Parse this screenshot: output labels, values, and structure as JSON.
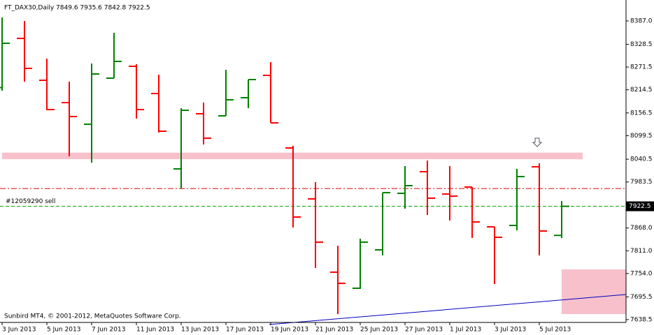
{
  "chart_data": {
    "type": "ohlc",
    "title": "FT_DAX30,Daily  7849.6 7935.6 7842.8 7922.5",
    "watermark": "Sunbird MT4, © 2001-2012, MetaQuotes Software Corp.",
    "categories": [
      "3 Jun 2013",
      null,
      "5 Jun 2013",
      null,
      "7 Jun 2013",
      null,
      "11 Jun 2013",
      null,
      "13 Jun 2013",
      null,
      "17 Jun 2013",
      null,
      "19 Jun 2013",
      null,
      "21 Jun 2013",
      null,
      "25 Jun 2013",
      null,
      "27 Jun 2013",
      null,
      "1 Jul 2013",
      null,
      "3 Jul 2013",
      null,
      "5 Jul 2013",
      null
    ],
    "open": [
      8220.0,
      8343.3,
      8238.3,
      8182.4,
      8128.1,
      8243.6,
      8273.3,
      8205.1,
      8016.2,
      8154.4,
      8149.1,
      8194.6,
      8250.6,
      8068.7,
      7941.0,
      7757.4,
      7717.1,
      7813.3,
      7955.0,
      8009.2,
      7953.2,
      7970.7,
      7871.0,
      7874.5,
      8021.5,
      7849.6
    ],
    "high": [
      8395.7,
      8387.0,
      8292.6,
      8234.8,
      8280.3,
      8357.3,
      8278.6,
      8252.3,
      8168.4,
      8182.4,
      8264.6,
      8240.1,
      8283.8,
      8073.9,
      7983.0,
      7823.8,
      7841.3,
      7956.7,
      8023.2,
      8037.2,
      8023.2,
      7970.7,
      7871.0,
      8016.2,
      8030.2,
      7935.6
    ],
    "low": [
      8212.1,
      8234.8,
      8163.1,
      8047.7,
      8031.9,
      8243.6,
      8142.1,
      8107.2,
      7967.2,
      8077.4,
      8149.1,
      8168.4,
      8131.6,
      7869.3,
      7767.9,
      7652.4,
      7715.4,
      7799.3,
      7916.5,
      7900.8,
      7886.8,
      7843.1,
      7727.6,
      7862.3,
      7799.3,
      7842.8
    ],
    "close": [
      8331.0,
      8268.1,
      8164.9,
      8147.4,
      8254.1,
      8285.6,
      8164.9,
      8110.7,
      8163.1,
      8093.2,
      8189.4,
      8240.1,
      8131.6,
      7895.5,
      7832.6,
      7729.4,
      7832.6,
      7956.7,
      7974.2,
      7942.8,
      7948.0,
      7883.3,
      7844.8,
      7997.0,
      7860.5,
      7922.5
    ],
    "up_color": "#008000",
    "down_color": "#ff0000",
    "ylim": [
      7631.4,
      8439.5
    ],
    "yticks": [
      {
        "value": 8387.0,
        "label": "8387.0"
      },
      {
        "value": 8328.5,
        "label": "8328.5"
      },
      {
        "value": 8271.5,
        "label": "8271.5"
      },
      {
        "value": 8214.5,
        "label": "8214.5"
      },
      {
        "value": 8156.5,
        "label": "8156.5"
      },
      {
        "value": 8099.5,
        "label": "8099.5"
      },
      {
        "value": 8040.5,
        "label": "8040.5"
      },
      {
        "value": 7983.5,
        "label": "7983.5"
      },
      {
        "value": 7868.0,
        "label": "7868.0"
      },
      {
        "value": 7811.0,
        "label": "7811.0"
      },
      {
        "value": 7754.0,
        "label": "7754.0"
      },
      {
        "value": 7695.5,
        "label": "7695.5"
      },
      {
        "value": 7638.5,
        "label": "7638.5"
      }
    ],
    "last_price": 7922.5,
    "order_line": {
      "value": 7922.5,
      "label": "#12059290 sell"
    },
    "stop_line": 7967.0,
    "resistance_zone": [
      8040.5,
      8057.0
    ]
  }
}
